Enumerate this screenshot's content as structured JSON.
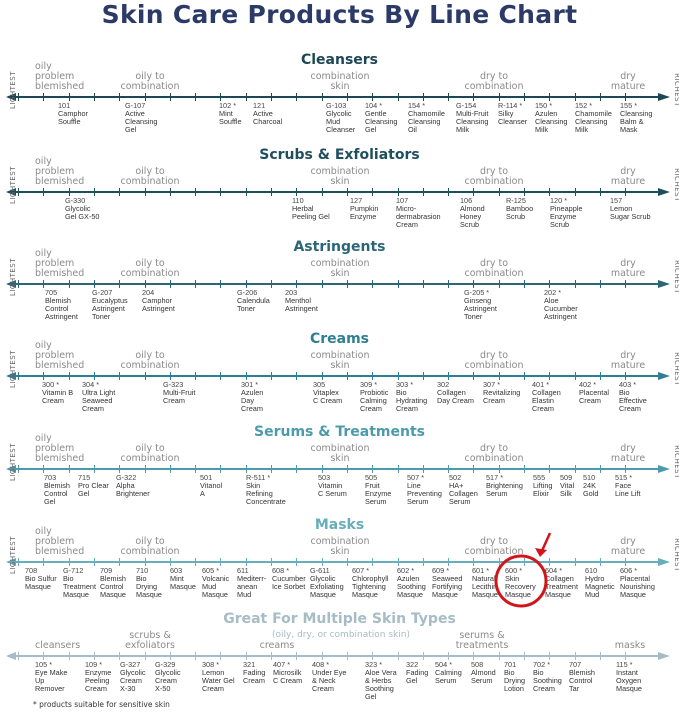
{
  "title": "Skin Care Products By Line Chart",
  "axis_ends": {
    "left": "LIGHTEST",
    "right": "RICHEST"
  },
  "skin_types": [
    "oily\nproblem\nblemished",
    "oily to\ncombination",
    "combination\nskin",
    "dry to\ncombination",
    "dry\nmature"
  ],
  "sections": [
    {
      "title": "Cleansers",
      "color": "#1d4756",
      "products": [
        {
          "num": "101",
          "name": "Camphor\nSouffle"
        },
        {
          "num": "G-107",
          "name": "Active\nCleansing\nGel"
        },
        {
          "num": "102 *",
          "name": "Mint\nSouffle"
        },
        {
          "num": "121",
          "name": "Active\nCharcoal"
        },
        {
          "num": "G-103",
          "name": "Glycolic\nMud\nCleanser"
        },
        {
          "num": "104 *",
          "name": "Gentle\nCleansing\nGel"
        },
        {
          "num": "154 *",
          "name": "Chamomile\nCleansing\nOil"
        },
        {
          "num": "G-154",
          "name": "Multi-Fruit\nCleansing\nMilk"
        },
        {
          "num": "R-114 *",
          "name": "Silky\nCleanser"
        },
        {
          "num": "150 *",
          "name": "Azulen\nCleansing\nMilk"
        },
        {
          "num": "152 *",
          "name": "Chamomile\nCleansing\nMilk"
        },
        {
          "num": "155 *",
          "name": "Cleansing\nBalm &\nMask"
        }
      ]
    },
    {
      "title": "Scrubs & Exfoliators",
      "color": "#1f4f5e",
      "products": [
        {
          "num": "G-330",
          "name": "Glycolic\nGel GX-50"
        },
        {
          "num": "110",
          "name": "Herbal\nPeeling Gel"
        },
        {
          "num": "127",
          "name": "Pumpkin\nEnzyme"
        },
        {
          "num": "107",
          "name": "Micro-\ndermabrasion\nCream"
        },
        {
          "num": "106",
          "name": "Almond\nHoney\nScrub"
        },
        {
          "num": "R-125",
          "name": "Bamboo\nScrub"
        },
        {
          "num": "120 *",
          "name": "Pineapple\nEnzyme\nScrub"
        },
        {
          "num": "157",
          "name": "Lemon\nSugar Scrub"
        }
      ]
    },
    {
      "title": "Astringents",
      "color": "#2a6578",
      "products": [
        {
          "num": "705",
          "name": "Blemish\nControl\nAstringent"
        },
        {
          "num": "G-207",
          "name": "Eucalyptus\nAstringent\nToner"
        },
        {
          "num": "204",
          "name": "Camphor\nAstringent"
        },
        {
          "num": "G-206",
          "name": "Calendula\nToner"
        },
        {
          "num": "203",
          "name": "Menthol\nAstringent"
        },
        {
          "num": "G-205 *",
          "name": "Ginseng\nAstringent\nToner"
        },
        {
          "num": "202 *",
          "name": "Aloe\nCucumber\nAstringent"
        }
      ]
    },
    {
      "title": "Creams",
      "color": "#2e7f93",
      "products": [
        {
          "num": "300 *",
          "name": "Vitamin B\nCream"
        },
        {
          "num": "304 *",
          "name": "Ultra Light\nSeaweed\nCream"
        },
        {
          "num": "G-323",
          "name": "Multi-Fruit\nCream"
        },
        {
          "num": "301 *",
          "name": "Azulen\nDay\nCream"
        },
        {
          "num": "305",
          "name": "Vitaplex\nC Cream"
        },
        {
          "num": "309 *",
          "name": "Probiotic\nCalming\nCream"
        },
        {
          "num": "303 *",
          "name": "Bio\nHydrating\nCream"
        },
        {
          "num": "302",
          "name": "Collagen\nDay Cream"
        },
        {
          "num": "307 *",
          "name": "Revitalizing\nCream"
        },
        {
          "num": "401 *",
          "name": "Collagen\nElastin\nCream"
        },
        {
          "num": "402 *",
          "name": "Placental\nCream"
        },
        {
          "num": "403 *",
          "name": "Bio\nEffective\nCream"
        }
      ]
    },
    {
      "title": "Serums & Treatments",
      "color": "#4d9aab",
      "products": [
        {
          "num": "703",
          "name": "Blemish\nControl\nGel"
        },
        {
          "num": "715",
          "name": "Pro Clear\nGel"
        },
        {
          "num": "G-322",
          "name": "Alpha\nBrightener"
        },
        {
          "num": "501",
          "name": "Vitanol\nA"
        },
        {
          "num": "R-511 *",
          "name": "Skin\nRefining\nConcentrate"
        },
        {
          "num": "503",
          "name": "Vitamin\nC Serum"
        },
        {
          "num": "505",
          "name": "Fruit\nEnzyme\nSerum"
        },
        {
          "num": "507 *",
          "name": "Line\nPreventing\nSerum"
        },
        {
          "num": "502",
          "name": "HA+\nCollagen\nSerum"
        },
        {
          "num": "517 *",
          "name": "Brightening\nSerum"
        },
        {
          "num": "555",
          "name": "Lifting\nElixir"
        },
        {
          "num": "509",
          "name": "Vital\nSilk"
        },
        {
          "num": "510",
          "name": "24K\nGold"
        },
        {
          "num": "515 *",
          "name": "Face\nLine Lift"
        }
      ]
    },
    {
      "title": "Masks",
      "color": "#66aebb",
      "products": [
        {
          "num": "708",
          "name": "Bio Sulfur\nMasque"
        },
        {
          "num": "G-712",
          "name": "Bio\nTreatment\nMasque"
        },
        {
          "num": "709",
          "name": "Blemish\nControl\nMasque"
        },
        {
          "num": "710",
          "name": "Bio\nDrying\nMasque"
        },
        {
          "num": "603",
          "name": "Mint\nMasque"
        },
        {
          "num": "605 *",
          "name": "Volcanic\nMud\nMasque"
        },
        {
          "num": "611",
          "name": "Mediterr-\nanean\nMud"
        },
        {
          "num": "608 *",
          "name": "Cucumber\nIce Sorbet"
        },
        {
          "num": "G-611",
          "name": "Glycolic\nExfoliating\nMasque"
        },
        {
          "num": "607 *",
          "name": "Chlorophyll\nTightening\nMasque"
        },
        {
          "num": "602 *",
          "name": "Azulen\nSoothing\nMasque"
        },
        {
          "num": "609 *",
          "name": "Seaweed\nFortifying\nMasque"
        },
        {
          "num": "601 *",
          "name": "Natural\nLecithin\nMasque"
        },
        {
          "num": "600 *",
          "name": "Skin\nRecovery\nMasque"
        },
        {
          "num": "604 *",
          "name": "Collagen\nTreatment\nMasque"
        },
        {
          "num": "610",
          "name": "Hydro\nMagnetic\nMud"
        },
        {
          "num": "606 *",
          "name": "Placental\nNourishing\nMasque"
        }
      ]
    }
  ],
  "multi": {
    "title": "Great For Multiple Skin Types",
    "subtitle": "(oily, dry, or combination skin)",
    "color": "#a6bcc6",
    "categories": [
      "cleansers",
      "scrubs &\nexfoliators",
      "creams",
      "serums &\ntreatments",
      "masks"
    ],
    "products": [
      {
        "num": "105 *",
        "name": "Eye Make\nUp\nRemover"
      },
      {
        "num": "109 *",
        "name": "Enzyme\nPeeling\nCream"
      },
      {
        "num": "G-327",
        "name": "Glycolic\nCream\nX-30"
      },
      {
        "num": "G-329",
        "name": "Glycolic\nCream\nX-50"
      },
      {
        "num": "308 *",
        "name": "Lemon\nWater Gel\nCream"
      },
      {
        "num": "321",
        "name": "Fading\nCream"
      },
      {
        "num": "407 *",
        "name": "Microsilk\nC Cream"
      },
      {
        "num": "408 *",
        "name": "Under Eye\n& Neck\nCream"
      },
      {
        "num": "323 *",
        "name": "Aloe Vera\n& Herbs\nSoothing\nGel"
      },
      {
        "num": "322",
        "name": "Fading\nGel"
      },
      {
        "num": "504 *",
        "name": "Calming\nSerum"
      },
      {
        "num": "508",
        "name": "Almond\nSerum"
      },
      {
        "num": "701",
        "name": "Bio\nDrying\nLotion"
      },
      {
        "num": "702 *",
        "name": "Bio\nSoothing\nCream"
      },
      {
        "num": "707",
        "name": "Blemish\nControl\nTar"
      },
      {
        "num": "115 *",
        "name": "Instant\nOxygen\nMasque"
      }
    ]
  },
  "highlight": {
    "product": "600 *",
    "color": "#d0161b"
  },
  "footnote": "* products suitable for sensitive skin"
}
